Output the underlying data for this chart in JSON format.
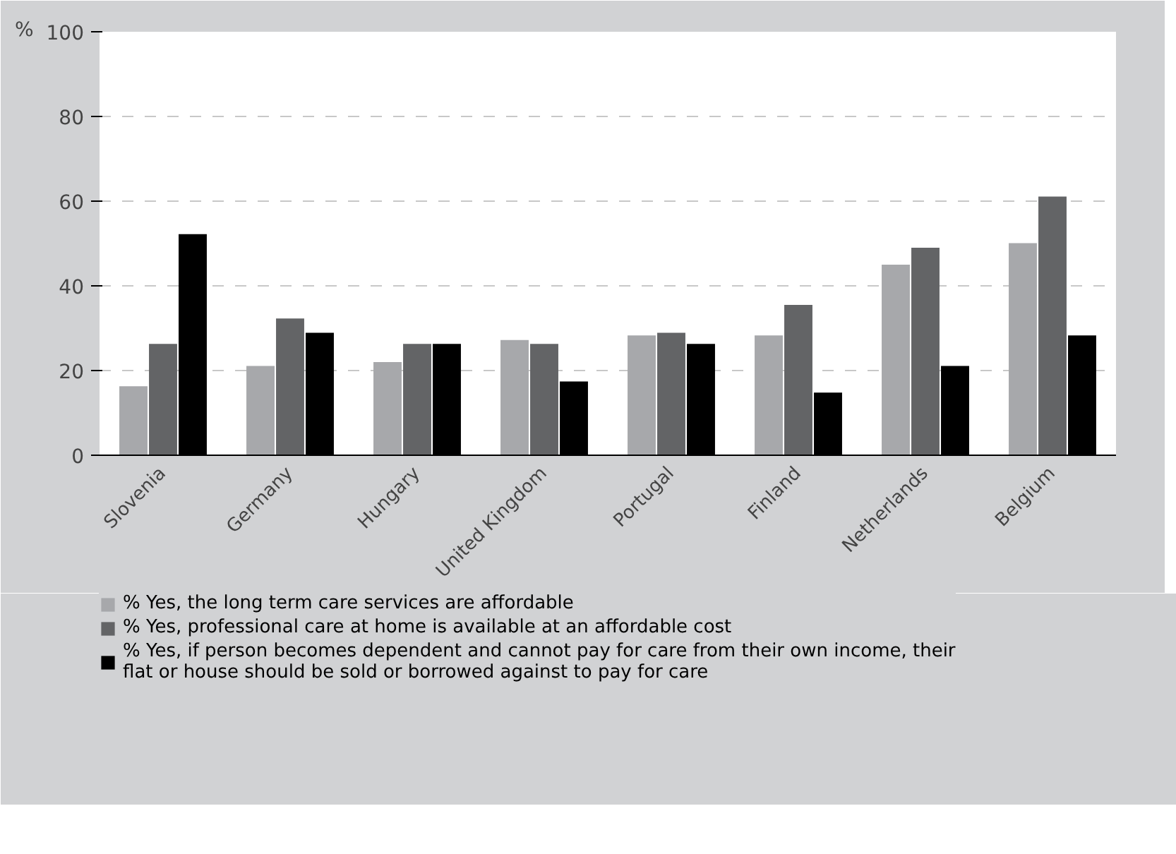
{
  "chart_data": {
    "type": "bar",
    "ylabel": "%",
    "categories": [
      "Slovenia",
      "Germany",
      "Hungary",
      "United Kingdom",
      "Portugal",
      "Finland",
      "Netherlands",
      "Belgium"
    ],
    "series": [
      {
        "name": "% Yes, the long term care services are affordable",
        "color": "#a7a8ab",
        "values": [
          16.3,
          21.1,
          22.0,
          27.2,
          28.3,
          28.3,
          45.0,
          50.1
        ]
      },
      {
        "name": "% Yes, professional care at home is available at an affordable cost",
        "color": "#636466",
        "values": [
          26.3,
          32.3,
          26.3,
          26.3,
          28.9,
          35.5,
          49.0,
          61.1
        ]
      },
      {
        "name": "% Yes, if person becomes dependent and cannot pay for care from their own income, their flat or house should be sold or borrowed against to pay for care",
        "color": "#000000",
        "values": [
          52.2,
          28.9,
          26.3,
          17.4,
          26.3,
          14.8,
          21.1,
          28.3
        ]
      }
    ],
    "ylim": [
      0,
      100
    ],
    "yticks": [
      0,
      20,
      40,
      60,
      80,
      100
    ],
    "grid": "y",
    "legend": "bottom"
  }
}
